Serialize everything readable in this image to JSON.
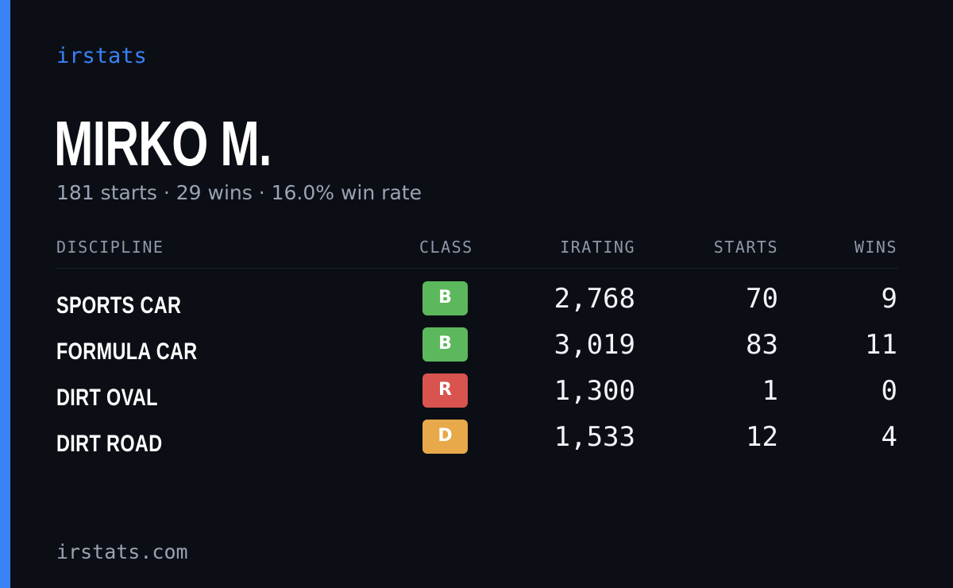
{
  "brand": "irstats",
  "driver": {
    "name": "MIRKO M.",
    "summary": "181 starts · 29 wins · 16.0% win rate"
  },
  "table": {
    "headers": {
      "discipline": "DISCIPLINE",
      "class": "CLASS",
      "irating": "IRATING",
      "starts": "STARTS",
      "wins": "WINS"
    },
    "rows": [
      {
        "discipline": "SPORTS CAR",
        "class": "B",
        "class_color": "#5cb85c",
        "irating": "2,768",
        "starts": "70",
        "wins": "9"
      },
      {
        "discipline": "FORMULA CAR",
        "class": "B",
        "class_color": "#5cb85c",
        "irating": "3,019",
        "starts": "83",
        "wins": "11"
      },
      {
        "discipline": "DIRT OVAL",
        "class": "R",
        "class_color": "#d9534f",
        "irating": "1,300",
        "starts": "1",
        "wins": "0"
      },
      {
        "discipline": "DIRT ROAD",
        "class": "D",
        "class_color": "#e8a94a",
        "irating": "1,533",
        "starts": "12",
        "wins": "4"
      }
    ]
  },
  "footer": "irstats.com",
  "colors": {
    "background": "#0b0e15",
    "accent": "#3b82f6",
    "muted_text": "#9aa3b2"
  }
}
